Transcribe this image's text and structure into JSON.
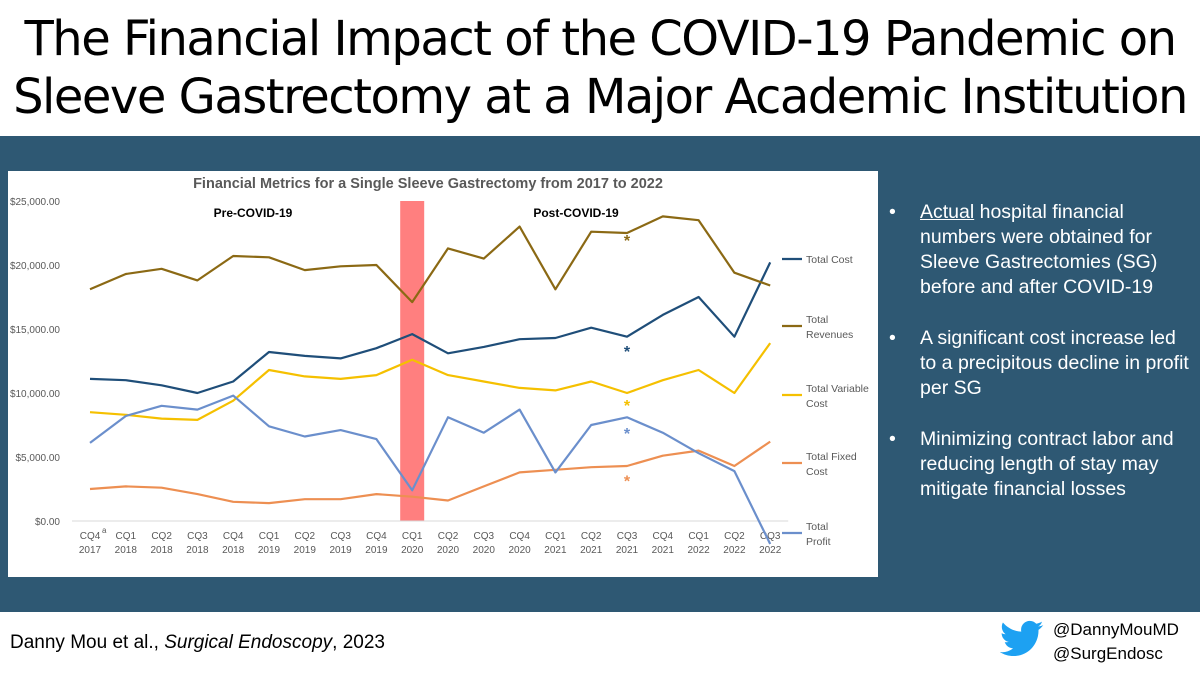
{
  "slide": {
    "title_line1": "The Financial Impact of the COVID-19 Pandemic on",
    "title_line2": "Sleeve Gastrectomy at a Major Academic Institution",
    "bullets": [
      {
        "underlined": "Actual",
        "text": " hospital financial numbers were obtained for Sleeve Gastrectomies (SG) before and after COVID-19"
      },
      {
        "underlined": "",
        "text": "A significant cost increase led to a precipitous decline in profit per SG"
      },
      {
        "underlined": "",
        "text": "Minimizing contract labor and reducing length of stay may mitigate financial losses"
      }
    ],
    "bullet_symbol": "•",
    "citation_authors": "Danny Mou et al., ",
    "citation_journal": "Surgical Endoscopy",
    "citation_year": ", 2023",
    "handles": [
      "@DannyMouMD",
      "@SurgEndosc"
    ],
    "twitter_icon_name": "twitter-bird-icon",
    "colors": {
      "band": "#2e5873",
      "twitter": "#1da1f2"
    }
  },
  "chart_data": {
    "type": "line",
    "title": "Financial Metrics for a Single Sleeve Gastrectomy from 2017 to 2022",
    "categories": [
      [
        "CQ4",
        "2017"
      ],
      [
        "CQ1",
        "2018"
      ],
      [
        "CQ2",
        "2018"
      ],
      [
        "CQ3",
        "2018"
      ],
      [
        "CQ4",
        "2018"
      ],
      [
        "CQ1",
        "2019"
      ],
      [
        "CQ2",
        "2019"
      ],
      [
        "CQ3",
        "2019"
      ],
      [
        "CQ4",
        "2019"
      ],
      [
        "CQ1",
        "2020"
      ],
      [
        "CQ2",
        "2020"
      ],
      [
        "CQ3",
        "2020"
      ],
      [
        "CQ4",
        "2020"
      ],
      [
        "CQ1",
        "2021"
      ],
      [
        "CQ2",
        "2021"
      ],
      [
        "CQ3",
        "2021"
      ],
      [
        "CQ4",
        "2021"
      ],
      [
        "CQ1",
        "2022"
      ],
      [
        "CQ2",
        "2022"
      ],
      [
        "CQ3",
        "2022"
      ]
    ],
    "first_category_superscript": "a",
    "ylim": [
      0,
      25000
    ],
    "yticks": [
      {
        "value": 0,
        "label": "$0.00"
      },
      {
        "value": 5000,
        "label": "$5,000.00"
      },
      {
        "value": 10000,
        "label": "$10,000.00"
      },
      {
        "value": 15000,
        "label": "$15,000.00"
      },
      {
        "value": 20000,
        "label": "$20,000.00"
      },
      {
        "value": 25000,
        "label": "$25,000.00"
      }
    ],
    "grid": false,
    "legend": "right",
    "annotations": {
      "pre": "Pre-COVID-19",
      "post": "Post-COVID-19",
      "covid_band_category": "CQ1 2020",
      "covid_band_color": "#ff7f7f",
      "asterisk_category": "CQ3 2021",
      "asterisk_symbol": "*"
    },
    "series": [
      {
        "name": "Total Cost",
        "color": "#1f4e79",
        "values": [
          11100,
          11000,
          10600,
          10000,
          10900,
          13200,
          12900,
          12700,
          13500,
          14600,
          13100,
          13600,
          14200,
          14300,
          15100,
          14400,
          16100,
          17500,
          14400,
          20200
        ],
        "asterisk_value": 13500
      },
      {
        "name": "Total Revenues",
        "color": "#8b6914",
        "values": [
          18100,
          19300,
          19700,
          18800,
          20700,
          20600,
          19600,
          19900,
          20000,
          17100,
          21300,
          20500,
          23000,
          18100,
          22600,
          22500,
          23800,
          23500,
          19400,
          18400
        ],
        "asterisk_value": 22200
      },
      {
        "name": "Total Variable Cost",
        "color": "#f5c000",
        "values": [
          8500,
          8300,
          8000,
          7900,
          9400,
          11800,
          11300,
          11100,
          11400,
          12600,
          11400,
          10900,
          10400,
          10200,
          10900,
          10000,
          11000,
          11800,
          10000,
          13900
        ],
        "asterisk_value": 9300
      },
      {
        "name": "Total Fixed Cost",
        "color": "#ed8f52",
        "values": [
          2500,
          2700,
          2600,
          2100,
          1500,
          1400,
          1700,
          1700,
          2100,
          1900,
          1600,
          2700,
          3800,
          4000,
          4200,
          4300,
          5100,
          5500,
          4300,
          6200
        ],
        "asterisk_value": 3400
      },
      {
        "name": "Total Profit",
        "color": "#6b8fcc",
        "values": [
          6100,
          8200,
          9000,
          8700,
          9800,
          7400,
          6600,
          7100,
          6400,
          2400,
          8100,
          6900,
          8700,
          3800,
          7500,
          8100,
          6900,
          5300,
          3900,
          -1800
        ],
        "asterisk_value": 7100
      }
    ]
  }
}
